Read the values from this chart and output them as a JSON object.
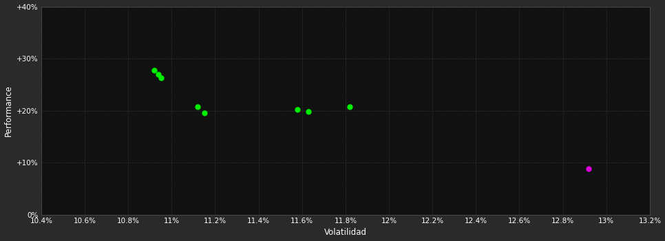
{
  "xlabel": "Volatilidad",
  "ylabel": "Performance",
  "background_color": "#2a2a2a",
  "plot_bg_color": "#111111",
  "grid_color": "#404040",
  "text_color": "#ffffff",
  "xlim": [
    0.104,
    0.132
  ],
  "ylim": [
    0.0,
    0.4
  ],
  "xtick_step": 0.002,
  "ytick_step": 0.1,
  "green_points": [
    [
      0.1092,
      0.278
    ],
    [
      0.1094,
      0.27
    ],
    [
      0.1095,
      0.263
    ],
    [
      0.1112,
      0.207
    ],
    [
      0.1115,
      0.196
    ],
    [
      0.1158,
      0.202
    ],
    [
      0.1163,
      0.198
    ],
    [
      0.1182,
      0.208
    ]
  ],
  "magenta_points": [
    [
      0.1292,
      0.088
    ]
  ],
  "green_color": "#00ee00",
  "magenta_color": "#dd00dd",
  "marker_size": 5
}
